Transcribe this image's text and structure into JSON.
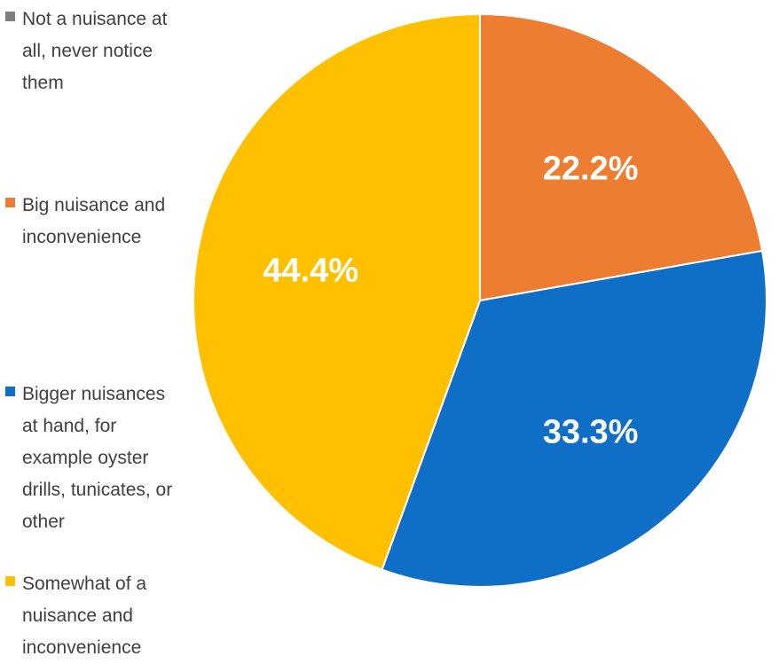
{
  "chart_data": {
    "type": "pie",
    "title": "",
    "start_angle_deg": 0,
    "direction": "clockwise",
    "slices": [
      {
        "label": "Not a nuisance at all, never notice them",
        "value": 0.0,
        "value_label": "",
        "color": "#7f7f7f"
      },
      {
        "label": "Big nuisance and inconvenience",
        "value": 22.2,
        "value_label": "22.2%",
        "color": "#ed7d31"
      },
      {
        "label": "Bigger nuisances at hand, for example oyster drills, tunicates, or other",
        "value": 33.3,
        "value_label": "33.3%",
        "color": "#0f6fc6"
      },
      {
        "label": "Somewhat of a nuisance and inconvenience",
        "value": 44.4,
        "value_label": "44.4%",
        "color": "#ffc000"
      }
    ],
    "legend_position": "left"
  }
}
